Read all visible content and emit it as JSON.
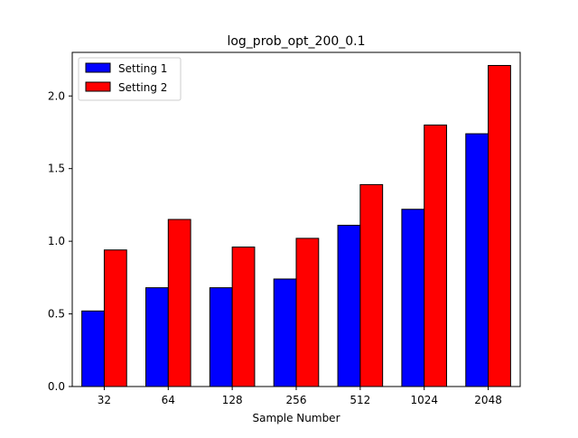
{
  "chart_data": {
    "type": "bar",
    "title": "log_prob_opt_200_0.1",
    "xlabel": "Sample Number",
    "ylabel": "",
    "categories": [
      "32",
      "64",
      "128",
      "256",
      "512",
      "1024",
      "2048"
    ],
    "series": [
      {
        "name": "Setting 1",
        "color": "#0000ff",
        "values": [
          0.52,
          0.68,
          0.68,
          0.74,
          1.11,
          1.22,
          1.74
        ]
      },
      {
        "name": "Setting 2",
        "color": "#ff0000",
        "values": [
          0.94,
          1.15,
          0.96,
          1.02,
          1.39,
          1.8,
          2.21
        ]
      }
    ],
    "ylim": [
      0,
      2.3
    ],
    "yticks": [
      "0.0",
      "0.5",
      "1.0",
      "1.5",
      "2.0"
    ],
    "grid": false,
    "legend_position": "top-left"
  }
}
